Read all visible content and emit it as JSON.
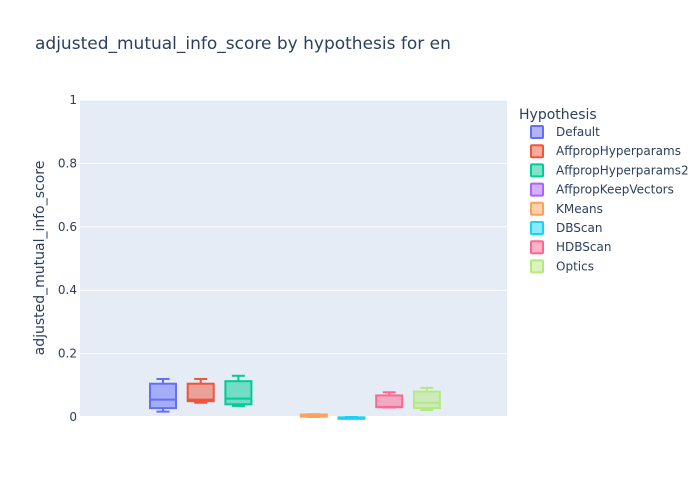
{
  "chart_data": {
    "type": "box",
    "title": "adjusted_mutual_info_score by hypothesis for en",
    "ylabel": "adjusted_mutual_info_score",
    "xlabel": "",
    "ylim": [
      0,
      1
    ],
    "yticks": [
      0,
      0.2,
      0.4,
      0.6,
      0.8,
      1
    ],
    "ytick_labels": [
      "0",
      "0.2",
      "0.4",
      "0.6",
      "0.8",
      "1"
    ],
    "grid": true,
    "legend": {
      "title": "Hypothesis",
      "placement": "right"
    },
    "series": [
      {
        "name": "Default",
        "color": "#636efa",
        "min": 0.017,
        "q1": 0.028,
        "median": 0.055,
        "q3": 0.105,
        "max": 0.12
      },
      {
        "name": "AffpropHyperparams",
        "color": "#ef553b",
        "min": 0.045,
        "q1": 0.05,
        "median": 0.055,
        "q3": 0.105,
        "max": 0.12
      },
      {
        "name": "AffpropHyperparams2",
        "color": "#00cc96",
        "min": 0.035,
        "q1": 0.04,
        "median": 0.058,
        "q3": 0.113,
        "max": 0.13
      },
      {
        "name": "AffpropKeepVectors",
        "color": "#ab63fa",
        "min": null,
        "q1": null,
        "median": null,
        "q3": null,
        "max": null
      },
      {
        "name": "KMeans",
        "color": "#ffa15a",
        "min": 0.0,
        "q1": 0.001,
        "median": 0.004,
        "q3": 0.008,
        "max": 0.009
      },
      {
        "name": "DBScan",
        "color": "#19d3f3",
        "min": -0.005,
        "q1": -0.004,
        "median": -0.002,
        "q3": -0.001,
        "max": 0.0
      },
      {
        "name": "HDBScan",
        "color": "#ff6692",
        "min": 0.03,
        "q1": 0.031,
        "median": 0.032,
        "q3": 0.068,
        "max": 0.078
      },
      {
        "name": "Optics",
        "color": "#b6e880",
        "min": 0.022,
        "q1": 0.028,
        "median": 0.045,
        "q3": 0.08,
        "max": 0.092
      }
    ]
  }
}
